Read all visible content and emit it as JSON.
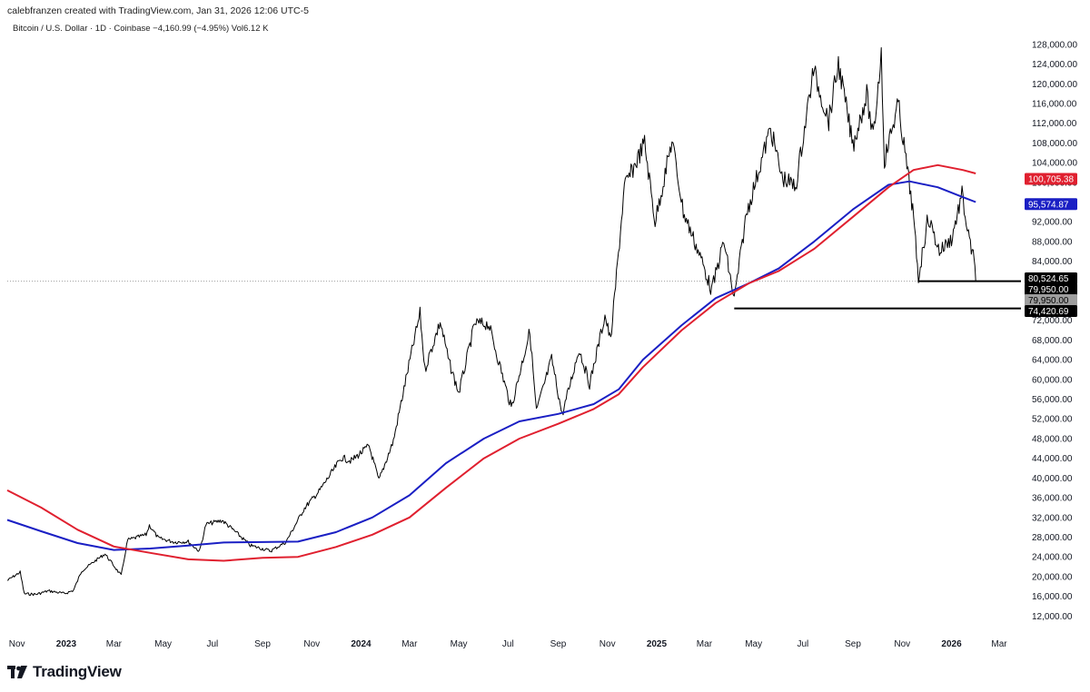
{
  "header": {
    "credit": "calebfranzen created with TradingView.com, Jan 31, 2026 12:06 UTC-5",
    "symbol_line": "Bitcoin / U.S. Dollar · 1D · Coinbase  −4,160.99 (−4.95%)  Vol6.12 K"
  },
  "footer": {
    "brand": "TradingView"
  },
  "colors": {
    "price": "#000000",
    "ma_blue": "#1a1fc4",
    "ma_red": "#e0202f",
    "grey_badge": "#9e9e9e",
    "black_badge": "#000000"
  },
  "chart_data": {
    "type": "line",
    "title": "",
    "ylim": [
      8000,
      130000
    ],
    "y_ticks": [
      12000,
      16000,
      20000,
      24000,
      28000,
      32000,
      36000,
      40000,
      44000,
      48000,
      52000,
      56000,
      60000,
      64000,
      68000,
      72000,
      76000,
      80000,
      84000,
      88000,
      92000,
      96000,
      100000,
      104000,
      108000,
      112000,
      116000,
      120000,
      124000,
      128000
    ],
    "y_tick_labels": [
      "12,000.00",
      "16,000.00",
      "20,000.00",
      "24,000.00",
      "28,000.00",
      "32,000.00",
      "36,000.00",
      "40,000.00",
      "44,000.00",
      "48,000.00",
      "52,000.00",
      "56,000.00",
      "60,000.00",
      "64,000.00",
      "68,000.00",
      "72,000.00",
      "76,000.00",
      "80,000.00",
      "84,000.00",
      "88,000.00",
      "92,000.00",
      "96,000.00",
      "100,000.00",
      "104,000.00",
      "108,000.00",
      "112,000.00",
      "116,000.00",
      "120,000.00",
      "124,000.00",
      "128,000.00"
    ],
    "x_range": [
      "2022-10-20",
      "2026-03-28"
    ],
    "x_ticks": [
      {
        "date": "2022-11-01",
        "label": "Nov",
        "bold": false
      },
      {
        "date": "2023-01-01",
        "label": "2023",
        "bold": true
      },
      {
        "date": "2023-03-01",
        "label": "Mar",
        "bold": false
      },
      {
        "date": "2023-05-01",
        "label": "May",
        "bold": false
      },
      {
        "date": "2023-07-01",
        "label": "Jul",
        "bold": false
      },
      {
        "date": "2023-09-01",
        "label": "Sep",
        "bold": false
      },
      {
        "date": "2023-11-01",
        "label": "Nov",
        "bold": false
      },
      {
        "date": "2024-01-01",
        "label": "2024",
        "bold": true
      },
      {
        "date": "2024-03-01",
        "label": "Mar",
        "bold": false
      },
      {
        "date": "2024-05-01",
        "label": "May",
        "bold": false
      },
      {
        "date": "2024-07-01",
        "label": "Jul",
        "bold": false
      },
      {
        "date": "2024-09-01",
        "label": "Sep",
        "bold": false
      },
      {
        "date": "2024-11-01",
        "label": "Nov",
        "bold": false
      },
      {
        "date": "2025-01-01",
        "label": "2025",
        "bold": true
      },
      {
        "date": "2025-03-01",
        "label": "Mar",
        "bold": false
      },
      {
        "date": "2025-05-01",
        "label": "May",
        "bold": false
      },
      {
        "date": "2025-07-01",
        "label": "Jul",
        "bold": false
      },
      {
        "date": "2025-09-01",
        "label": "Sep",
        "bold": false
      },
      {
        "date": "2025-11-01",
        "label": "Nov",
        "bold": false
      },
      {
        "date": "2026-01-01",
        "label": "2026",
        "bold": true
      },
      {
        "date": "2026-03-01",
        "label": "Mar",
        "bold": false
      }
    ],
    "series": [
      {
        "color": "#000000",
        "points": [
          [
            "2022-10-20",
            19200
          ],
          [
            "2022-11-05",
            20900
          ],
          [
            "2022-11-10",
            16500
          ],
          [
            "2022-11-25",
            16400
          ],
          [
            "2022-12-10",
            17100
          ],
          [
            "2022-12-30",
            16550
          ],
          [
            "2023-01-10",
            17200
          ],
          [
            "2023-01-20",
            21100
          ],
          [
            "2023-02-05",
            23100
          ],
          [
            "2023-02-18",
            24600
          ],
          [
            "2023-03-10",
            20200
          ],
          [
            "2023-03-18",
            27400
          ],
          [
            "2023-04-10",
            28500
          ],
          [
            "2023-04-14",
            30400
          ],
          [
            "2023-04-25",
            27800
          ],
          [
            "2023-05-15",
            27000
          ],
          [
            "2023-06-01",
            27100
          ],
          [
            "2023-06-15",
            25100
          ],
          [
            "2023-06-23",
            30600
          ],
          [
            "2023-07-13",
            31400
          ],
          [
            "2023-07-28",
            29300
          ],
          [
            "2023-08-17",
            26300
          ],
          [
            "2023-09-11",
            25200
          ],
          [
            "2023-09-30",
            27000
          ],
          [
            "2023-10-23",
            33900
          ],
          [
            "2023-11-10",
            37300
          ],
          [
            "2023-12-08",
            44100
          ],
          [
            "2023-12-20",
            43500
          ],
          [
            "2024-01-11",
            46500
          ],
          [
            "2024-01-23",
            39500
          ],
          [
            "2024-02-10",
            47500
          ],
          [
            "2024-02-28",
            62000
          ],
          [
            "2024-03-14",
            73400
          ],
          [
            "2024-03-20",
            62000
          ],
          [
            "2024-04-08",
            71700
          ],
          [
            "2024-04-19",
            63500
          ],
          [
            "2024-05-01",
            57200
          ],
          [
            "2024-05-21",
            71400
          ],
          [
            "2024-06-07",
            71200
          ],
          [
            "2024-07-05",
            54200
          ],
          [
            "2024-07-28",
            69900
          ],
          [
            "2024-08-05",
            53500
          ],
          [
            "2024-08-24",
            64200
          ],
          [
            "2024-09-06",
            52800
          ],
          [
            "2024-09-27",
            66200
          ],
          [
            "2024-10-10",
            59000
          ],
          [
            "2024-10-29",
            73000
          ],
          [
            "2024-11-05",
            67800
          ],
          [
            "2024-11-22",
            99000
          ],
          [
            "2024-12-05",
            103500
          ],
          [
            "2024-12-17",
            108000
          ],
          [
            "2024-12-30",
            92000
          ],
          [
            "2025-01-20",
            108500
          ],
          [
            "2025-02-03",
            94000
          ],
          [
            "2025-02-25",
            84500
          ],
          [
            "2025-03-10",
            78000
          ],
          [
            "2025-03-25",
            88000
          ],
          [
            "2025-04-07",
            76200
          ],
          [
            "2025-04-22",
            93500
          ],
          [
            "2025-05-22",
            111000
          ],
          [
            "2025-06-05",
            101000
          ],
          [
            "2025-06-22",
            99000
          ],
          [
            "2025-07-14",
            122800
          ],
          [
            "2025-08-02",
            112500
          ],
          [
            "2025-08-14",
            124100
          ],
          [
            "2025-09-01",
            107500
          ],
          [
            "2025-09-18",
            117800
          ],
          [
            "2025-09-26",
            108800
          ],
          [
            "2025-10-06",
            126200
          ],
          [
            "2025-10-10",
            104500
          ],
          [
            "2025-10-27",
            116000
          ],
          [
            "2025-11-14",
            94500
          ],
          [
            "2025-11-21",
            80500
          ],
          [
            "2025-12-03",
            93000
          ],
          [
            "2025-12-17",
            86000
          ],
          [
            "2026-01-01",
            88500
          ],
          [
            "2026-01-14",
            97500
          ],
          [
            "2026-01-22",
            89000
          ],
          [
            "2026-01-29",
            84000
          ],
          [
            "2026-01-31",
            79950
          ]
        ]
      },
      {
        "color": "#1a1fc4",
        "points": [
          [
            "2022-10-20",
            31500
          ],
          [
            "2022-12-01",
            29200
          ],
          [
            "2023-01-15",
            26800
          ],
          [
            "2023-03-01",
            25400
          ],
          [
            "2023-04-15",
            25700
          ],
          [
            "2023-06-01",
            26300
          ],
          [
            "2023-07-15",
            26900
          ],
          [
            "2023-09-01",
            27000
          ],
          [
            "2023-10-15",
            27100
          ],
          [
            "2023-12-01",
            29000
          ],
          [
            "2024-01-15",
            32000
          ],
          [
            "2024-03-01",
            36500
          ],
          [
            "2024-04-15",
            43000
          ],
          [
            "2024-06-01",
            48000
          ],
          [
            "2024-07-15",
            51500
          ],
          [
            "2024-09-01",
            53000
          ],
          [
            "2024-10-15",
            55000
          ],
          [
            "2024-11-15",
            58000
          ],
          [
            "2024-12-15",
            64000
          ],
          [
            "2025-02-01",
            71000
          ],
          [
            "2025-03-15",
            76500
          ],
          [
            "2025-04-25",
            79500
          ],
          [
            "2025-06-01",
            82500
          ],
          [
            "2025-07-15",
            88000
          ],
          [
            "2025-09-01",
            94500
          ],
          [
            "2025-10-15",
            99500
          ],
          [
            "2025-11-10",
            100200
          ],
          [
            "2025-12-15",
            99000
          ],
          [
            "2026-01-15",
            97000
          ],
          [
            "2026-01-31",
            96000
          ]
        ]
      },
      {
        "color": "#e0202f",
        "points": [
          [
            "2022-10-20",
            37500
          ],
          [
            "2022-12-01",
            34000
          ],
          [
            "2023-01-15",
            29500
          ],
          [
            "2023-03-01",
            26100
          ],
          [
            "2023-04-15",
            24800
          ],
          [
            "2023-06-01",
            23500
          ],
          [
            "2023-07-15",
            23200
          ],
          [
            "2023-09-01",
            23800
          ],
          [
            "2023-10-15",
            24000
          ],
          [
            "2023-12-01",
            26000
          ],
          [
            "2024-01-15",
            28500
          ],
          [
            "2024-03-01",
            32000
          ],
          [
            "2024-04-15",
            38000
          ],
          [
            "2024-06-01",
            44000
          ],
          [
            "2024-07-15",
            48000
          ],
          [
            "2024-09-01",
            51000
          ],
          [
            "2024-10-15",
            54000
          ],
          [
            "2024-11-15",
            57000
          ],
          [
            "2024-12-15",
            62500
          ],
          [
            "2025-02-01",
            70000
          ],
          [
            "2025-03-15",
            75500
          ],
          [
            "2025-04-25",
            79500
          ],
          [
            "2025-06-01",
            82000
          ],
          [
            "2025-07-15",
            86500
          ],
          [
            "2025-09-01",
            93000
          ],
          [
            "2025-10-15",
            99000
          ],
          [
            "2025-11-15",
            102500
          ],
          [
            "2025-12-15",
            103500
          ],
          [
            "2026-01-15",
            102500
          ],
          [
            "2026-01-31",
            101800
          ]
        ]
      }
    ],
    "horizontal_lines": [
      {
        "value": 79950,
        "from": "2025-11-21",
        "to": "2026-03-28",
        "color": "#000000"
      },
      {
        "value": 74420.69,
        "from": "2025-04-07",
        "to": "2026-03-28",
        "color": "#000000"
      }
    ],
    "price_badges": [
      {
        "value": 100705.38,
        "label": "100,705.38",
        "bg": "#e0202f",
        "fg": "#ffffff"
      },
      {
        "value": 95574.87,
        "label": "95,574.87",
        "bg": "#1a1fc4",
        "fg": "#ffffff"
      },
      {
        "value": 80524.65,
        "label": "80,524.65",
        "bg": "#000000",
        "fg": "#ffffff"
      },
      {
        "value": 79950.0,
        "label": "79,950.00",
        "bg": "#000000",
        "fg": "#ffffff"
      },
      {
        "value": 79950.0,
        "label": "79,950.00",
        "bg": "#9e9e9e",
        "fg": "#000000"
      },
      {
        "value": 74420.69,
        "label": "74,420.69",
        "bg": "#000000",
        "fg": "#ffffff"
      }
    ],
    "current_price_line": 79950
  }
}
